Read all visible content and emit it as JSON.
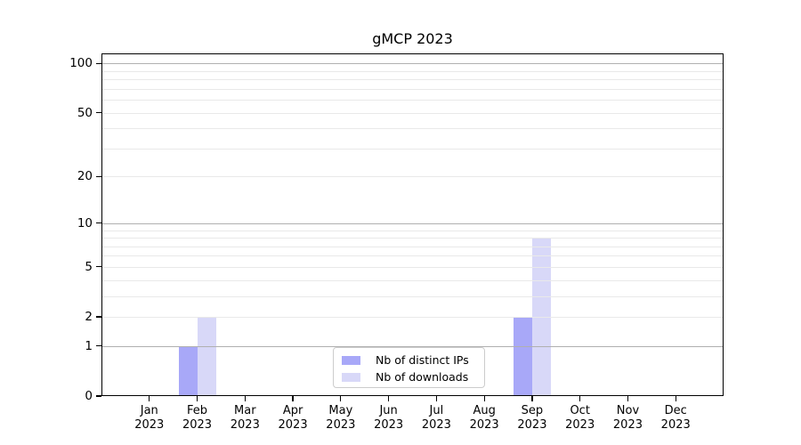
{
  "title": "gMCP 2023",
  "chart_data": {
    "type": "bar",
    "title": "gMCP 2023",
    "categories": [
      "Jan",
      "Feb",
      "Mar",
      "Apr",
      "May",
      "Jun",
      "Jul",
      "Aug",
      "Sep",
      "Oct",
      "Nov",
      "Dec"
    ],
    "category_year": "2023",
    "series": [
      {
        "name": "Nb of distinct IPs",
        "color": "#a8a8f8",
        "values": [
          0,
          1,
          0,
          0,
          0,
          0,
          0,
          0,
          2,
          0,
          0,
          0
        ]
      },
      {
        "name": "Nb of downloads",
        "color": "#d8d8f8",
        "values": [
          0,
          2,
          0,
          0,
          0,
          0,
          0,
          0,
          8,
          0,
          0,
          0
        ]
      }
    ],
    "yscale": "log1p",
    "ylim": [
      0,
      115
    ],
    "yticks": [
      0,
      1,
      2,
      5,
      10,
      20,
      50,
      100
    ],
    "major_gridlines": [
      1,
      10,
      100
    ],
    "minor_gridlines": [
      2,
      3,
      4,
      5,
      6,
      7,
      8,
      9,
      20,
      30,
      40,
      50,
      60,
      70,
      80,
      90
    ],
    "grid": true,
    "legend_position": "lower-center",
    "colors": {
      "axis": "#000000",
      "major_grid": "#b0b0b0",
      "minor_grid": "#e9e9e9",
      "background": "#ffffff"
    }
  }
}
